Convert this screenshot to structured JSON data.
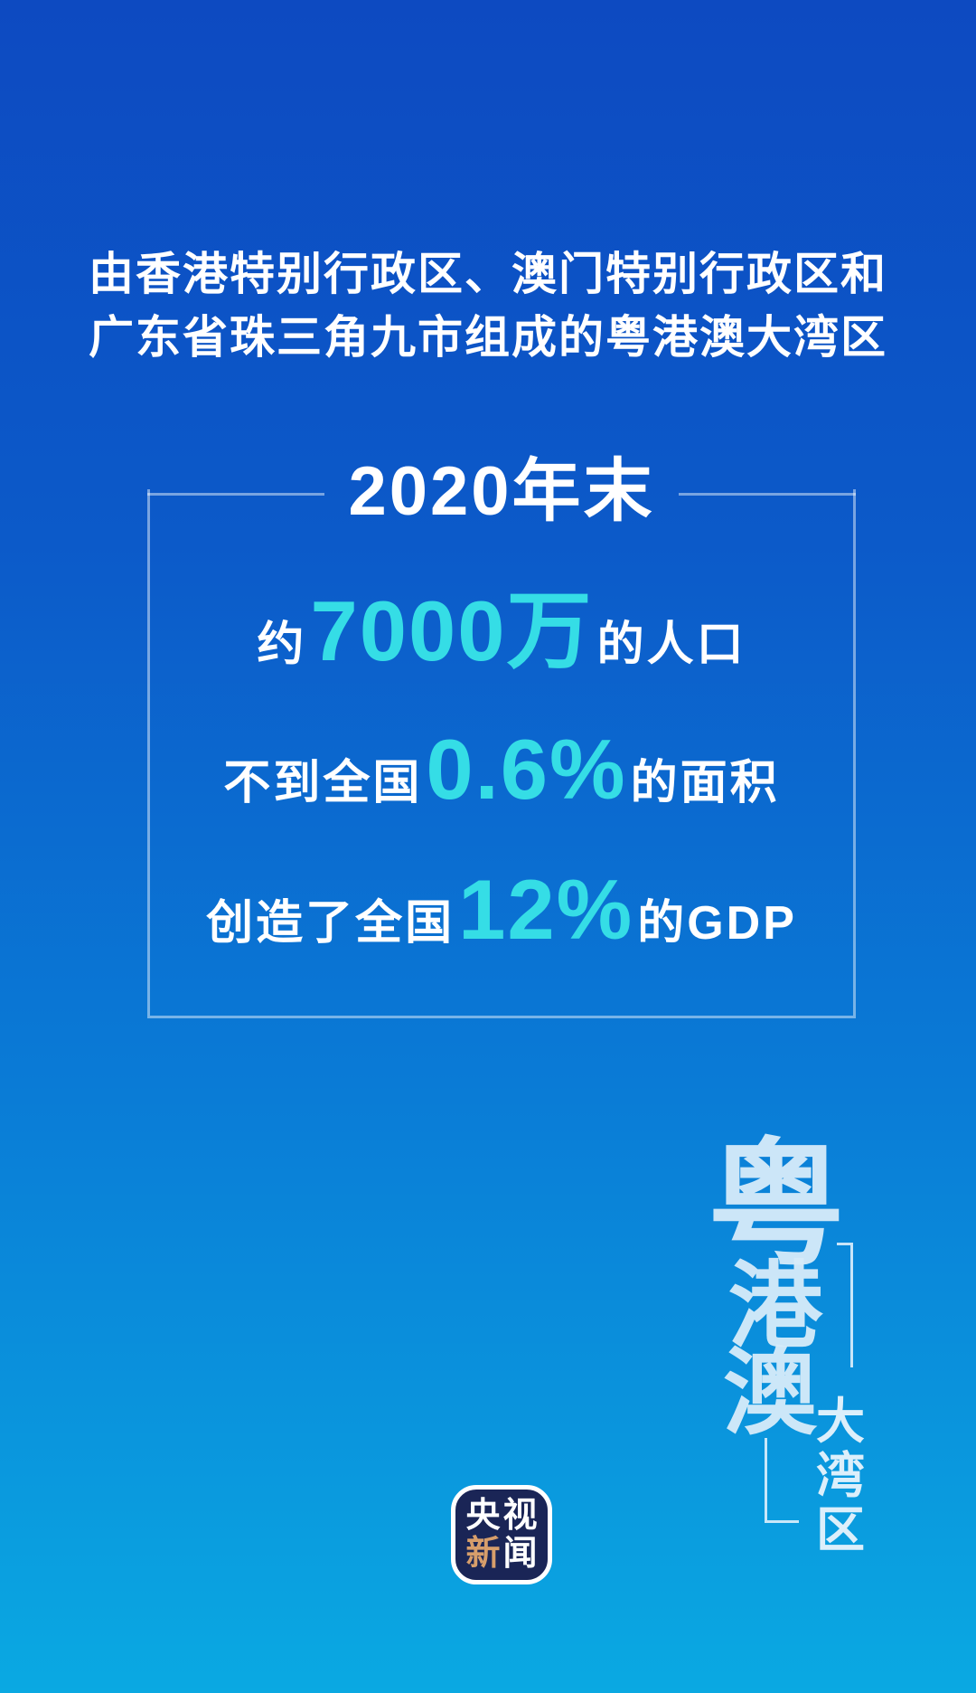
{
  "palette": {
    "background_top": "#0d4ac1",
    "background_bottom": "#0aa9e2",
    "accent_cyan": "#35dde6",
    "text_white": "#ffffff",
    "watermark_blue": "#d7ecfa",
    "logo_navy": "#1a2556",
    "logo_orange": "#d79e6b"
  },
  "header": {
    "line1": "由香港特别行政区、澳门特别行政区和",
    "line2": "广东省珠三角九市组成的粤港澳大湾区"
  },
  "stat_box": {
    "title": "2020年末",
    "stats": [
      {
        "prefix": "约",
        "value": "7000万",
        "suffix": "的人口"
      },
      {
        "prefix": "不到全国",
        "value": "0.6%",
        "suffix": "的面积"
      },
      {
        "prefix": "创造了全国",
        "value": "12%",
        "suffix": "的GDP"
      }
    ]
  },
  "watermark": {
    "calligraphy": [
      "粤",
      "港",
      "澳"
    ],
    "subtitle": [
      "大",
      "湾",
      "区"
    ]
  },
  "logo": {
    "name": "央视新闻",
    "chars": [
      "央",
      "视",
      "新",
      "闻"
    ]
  }
}
